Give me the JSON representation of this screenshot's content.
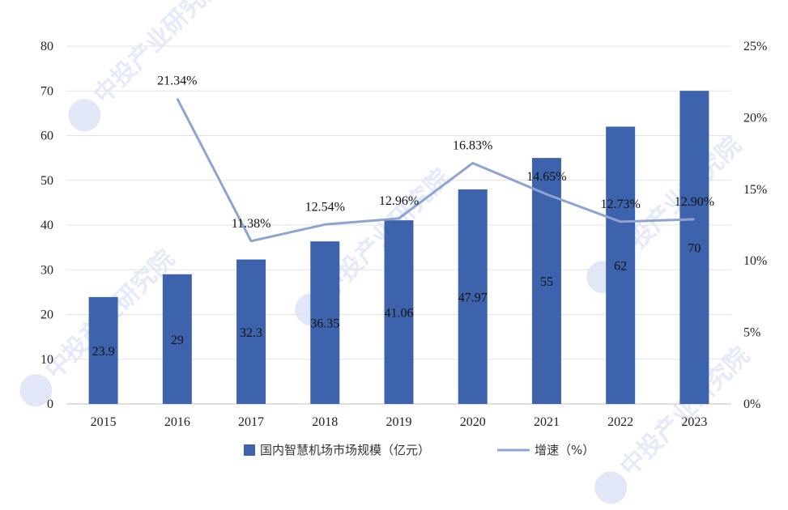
{
  "chart_data": {
    "type": "bar+line",
    "categories": [
      "2015",
      "2016",
      "2017",
      "2018",
      "2019",
      "2020",
      "2021",
      "2022",
      "2023"
    ],
    "series": [
      {
        "name": "国内智慧机场市场规模（亿元）",
        "type": "bar",
        "axis": "left",
        "values": [
          23.9,
          29,
          32.3,
          36.35,
          41.06,
          47.97,
          55,
          62,
          70
        ],
        "labels": [
          "23.9",
          "29",
          "32.3",
          "36.35",
          "41.06",
          "47.97",
          "55",
          "62",
          "70"
        ],
        "color": "#3d63ad"
      },
      {
        "name": "增速（%）",
        "type": "line",
        "axis": "right",
        "values": [
          null,
          21.34,
          11.38,
          12.54,
          12.96,
          16.83,
          14.65,
          12.73,
          12.9
        ],
        "labels": [
          "",
          "21.34%",
          "11.38%",
          "12.54%",
          "12.96%",
          "16.83%",
          "14.65%",
          "12.73%",
          "12.90%"
        ],
        "color": "#8fa3d3"
      }
    ],
    "y_left": {
      "min": 0,
      "max": 80,
      "ticks": [
        "0",
        "10",
        "20",
        "30",
        "40",
        "50",
        "60",
        "70",
        "80"
      ]
    },
    "y_right": {
      "min": 0,
      "max": 25,
      "ticks": [
        "0%",
        "5%",
        "10%",
        "15%",
        "20%",
        "25%"
      ]
    },
    "grid": true,
    "legend": "bottom"
  },
  "watermark": "中投产业研究院"
}
